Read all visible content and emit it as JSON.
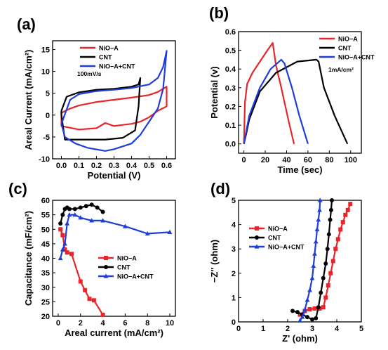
{
  "figure": {
    "panels": [
      "(a)",
      "(b)",
      "(c)",
      "(d)"
    ]
  },
  "chart_data": [
    {
      "panel": "(a)",
      "type": "line",
      "xlabel": "Potential (V)",
      "ylabel": "Areal Current (mA/cm²)",
      "xlim": [
        -0.05,
        0.65
      ],
      "ylim": [
        -10,
        17
      ],
      "xticks": [
        "0.0",
        "0.1",
        "0.2",
        "0.3",
        "0.4",
        "0.5",
        "0.6"
      ],
      "xtick_values": [
        0,
        0.1,
        0.2,
        0.3,
        0.4,
        0.5,
        0.6
      ],
      "yticks": [
        "-10",
        "-5",
        "0",
        "5",
        "10",
        "15"
      ],
      "ytick_values": [
        -10,
        -5,
        0,
        5,
        10,
        15
      ],
      "annotation": "100mV/s",
      "legend_position": "top-right",
      "series": [
        {
          "name": "NiO−A",
          "color": "#e8262a",
          "closed": true,
          "x": [
            0.0,
            0.05,
            0.1,
            0.2,
            0.3,
            0.4,
            0.5,
            0.55,
            0.6,
            0.6,
            0.55,
            0.5,
            0.45,
            0.4,
            0.3,
            0.25,
            0.2,
            0.1,
            0.0
          ],
          "y": [
            0.5,
            1.5,
            2.2,
            3.0,
            3.5,
            4.0,
            4.6,
            5.3,
            6.5,
            2.0,
            1.0,
            -0.5,
            -1.5,
            -2.0,
            -2.5,
            -1.8,
            -3.0,
            -3.3,
            -2.5
          ]
        },
        {
          "name": "CNT",
          "color": "#000000",
          "closed": true,
          "x": [
            0.0,
            0.03,
            0.1,
            0.2,
            0.3,
            0.4,
            0.44,
            0.45,
            0.44,
            0.42,
            0.35,
            0.25,
            0.15,
            0.08,
            0.02,
            0.0
          ],
          "y": [
            1.0,
            4.2,
            5.2,
            5.8,
            6.0,
            6.5,
            7.0,
            8.5,
            2.0,
            -3.5,
            -5.2,
            -5.6,
            -5.6,
            -5.6,
            -5.6,
            0.0
          ]
        },
        {
          "name": "NiO−A+CNT",
          "color": "#1f3ed8",
          "closed": true,
          "x": [
            0.0,
            0.05,
            0.1,
            0.2,
            0.3,
            0.4,
            0.5,
            0.55,
            0.58,
            0.6,
            0.58,
            0.55,
            0.5,
            0.45,
            0.4,
            0.3,
            0.25,
            0.15,
            0.08,
            0.02,
            0.0
          ],
          "y": [
            -2.0,
            3.5,
            4.8,
            5.5,
            5.8,
            6.2,
            7.0,
            8.5,
            11.0,
            14.7,
            6.0,
            1.5,
            -1.5,
            -4.5,
            -6.5,
            -7.8,
            -8.2,
            -7.5,
            -6.5,
            -5.0,
            -2.0
          ]
        }
      ]
    },
    {
      "panel": "(b)",
      "type": "line",
      "xlabel": "Time (sec)",
      "ylabel": "Potential (v)",
      "xlim": [
        -5,
        110
      ],
      "ylim": [
        -0.05,
        0.6
      ],
      "xticks": [
        "0",
        "20",
        "40",
        "60",
        "80",
        "100"
      ],
      "xtick_values": [
        0,
        20,
        40,
        60,
        80,
        100
      ],
      "yticks": [
        "0.0",
        "0.1",
        "0.2",
        "0.3",
        "0.4",
        "0.5",
        "0.6"
      ],
      "ytick_values": [
        0,
        0.1,
        0.2,
        0.3,
        0.4,
        0.5,
        0.6
      ],
      "annotation": "1mA/cm²",
      "legend_position": "top-right",
      "series": [
        {
          "name": "NiO−A",
          "color": "#e8262a",
          "x": [
            0,
            1,
            3,
            8,
            15,
            22,
            27,
            30,
            35,
            42,
            47
          ],
          "y": [
            0.0,
            0.22,
            0.32,
            0.38,
            0.44,
            0.5,
            0.54,
            0.42,
            0.3,
            0.12,
            0.0
          ]
        },
        {
          "name": "CNT",
          "color": "#000000",
          "x": [
            0,
            2,
            5,
            15,
            30,
            50,
            68,
            70,
            75,
            85,
            97
          ],
          "y": [
            0.0,
            0.05,
            0.13,
            0.28,
            0.38,
            0.44,
            0.45,
            0.44,
            0.3,
            0.15,
            0.0
          ]
        },
        {
          "name": "NiO−A+CNT",
          "color": "#1f3ed8",
          "x": [
            0,
            5,
            15,
            25,
            35,
            38,
            45,
            52,
            60
          ],
          "y": [
            0.0,
            0.15,
            0.3,
            0.4,
            0.45,
            0.43,
            0.3,
            0.15,
            0.0
          ]
        }
      ]
    },
    {
      "panel": "(c)",
      "type": "line",
      "xlabel": "Areal current (mA/cm²)",
      "ylabel": "Capacitance (mF/cm²)",
      "xlim": [
        -0.5,
        10.5
      ],
      "ylim": [
        20,
        60
      ],
      "xticks": [
        "0",
        "2",
        "4",
        "6",
        "8",
        "10"
      ],
      "xtick_values": [
        0,
        2,
        4,
        6,
        8,
        10
      ],
      "yticks": [
        "20",
        "25",
        "30",
        "35",
        "40",
        "45",
        "50",
        "55",
        "60"
      ],
      "ytick_values": [
        20,
        25,
        30,
        35,
        40,
        45,
        50,
        55,
        60
      ],
      "legend_position": "center-right",
      "series": [
        {
          "name": "NiO−A",
          "color": "#e8262a",
          "marker": "square",
          "x": [
            0.2,
            0.4,
            0.6,
            0.8,
            1.2,
            2.0,
            2.4,
            2.8,
            3.2,
            4.0
          ],
          "y": [
            50,
            48,
            43,
            42,
            41.5,
            32,
            29,
            26,
            25.5,
            20.5
          ]
        },
        {
          "name": "CNT",
          "color": "#000000",
          "marker": "circle",
          "x": [
            0.2,
            0.4,
            0.6,
            0.8,
            1.0,
            1.5,
            2.0,
            2.5,
            3.0,
            3.5,
            4.0
          ],
          "y": [
            52,
            55,
            57,
            57.5,
            57,
            57,
            57.5,
            58,
            58.5,
            57.5,
            56
          ]
        },
        {
          "name": "NiO−A+CNT",
          "color": "#1f3ed8",
          "marker": "triangle",
          "x": [
            0.2,
            0.4,
            0.6,
            0.8,
            1.0,
            1.5,
            2.0,
            3.0,
            4.0,
            6.0,
            8.0,
            10.0
          ],
          "y": [
            40,
            43,
            45,
            52,
            55,
            55,
            54,
            53,
            53,
            51,
            48.5,
            49
          ]
        }
      ]
    },
    {
      "panel": "(d)",
      "type": "scatter",
      "xlabel": "Z' (ohm)",
      "ylabel": "−Z'' (ohm)",
      "xlim": [
        0,
        5
      ],
      "ylim": [
        0,
        5
      ],
      "xticks": [
        "0",
        "1",
        "2",
        "3",
        "4",
        "5"
      ],
      "xtick_values": [
        0,
        1,
        2,
        3,
        4,
        5
      ],
      "yticks": [
        "0",
        "1",
        "2",
        "3",
        "4",
        "5"
      ],
      "ytick_values": [
        0,
        1,
        2,
        3,
        4,
        5
      ],
      "legend_position": "upper-left",
      "series": [
        {
          "name": "NiO−A",
          "color": "#e8262a",
          "marker": "square",
          "x": [
            2.5,
            2.7,
            2.9,
            3.1,
            3.3,
            3.45,
            3.55,
            3.65,
            3.75,
            3.85,
            3.95,
            4.05,
            4.15,
            4.25,
            4.35,
            4.45,
            4.55
          ],
          "y": [
            0.3,
            0.45,
            0.52,
            0.55,
            0.55,
            0.6,
            1.0,
            1.5,
            2.0,
            2.5,
            3.0,
            3.4,
            3.8,
            4.1,
            4.4,
            4.6,
            4.85
          ]
        },
        {
          "name": "CNT",
          "color": "#000000",
          "marker": "circle",
          "x": [
            2.2,
            2.4,
            2.6,
            2.8,
            3.0,
            3.15,
            3.25,
            3.35,
            3.45,
            3.55,
            3.62,
            3.68,
            3.73,
            3.77,
            3.8
          ],
          "y": [
            0.45,
            0.4,
            0.3,
            0.2,
            0.1,
            0.15,
            0.6,
            1.2,
            1.8,
            2.4,
            3.0,
            3.6,
            4.2,
            4.6,
            5.0
          ]
        },
        {
          "name": "NiO−A+CNT",
          "color": "#1f3ed8",
          "marker": "triangle",
          "x": [
            2.5,
            2.6,
            2.7,
            2.8,
            2.9,
            3.0,
            3.05,
            3.1,
            3.15,
            3.2,
            3.25,
            3.3,
            3.32
          ],
          "y": [
            0.05,
            0.2,
            0.5,
            0.9,
            1.3,
            1.8,
            2.3,
            2.8,
            3.3,
            3.8,
            4.2,
            4.6,
            5.0
          ]
        }
      ]
    }
  ]
}
